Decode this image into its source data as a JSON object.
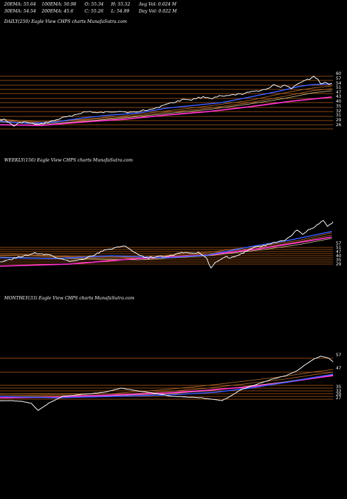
{
  "header": {
    "row1": [
      "20EMA: 55.64",
      "100EMA: 50.98",
      "O: 55.34",
      "H: 55.52",
      "Avg Vol: 0.024  M"
    ],
    "row2": [
      "30EMA: 54.54",
      "200EMA: 45.6",
      "C: 55.26",
      "L: 54.99",
      "Day Vol: 0.022  M"
    ]
  },
  "chart_data": [
    {
      "type": "line",
      "title": "DAILY(250) Eagle   View  CHPS charts MunafaSutra.com",
      "y_ticks": [
        60,
        57,
        54,
        51,
        47,
        43,
        40,
        35,
        32,
        31,
        29,
        26
      ],
      "series_colors": {
        "price": "#ffffff",
        "ema_fast": "#3a5bff",
        "ema_slow": "#ff33cc",
        "bands": "#d2691e"
      }
    },
    {
      "type": "line",
      "title": "WEEKLY(156) Eagle   View  CHPS charts MunafaSutra.com",
      "y_ticks": [
        57,
        51,
        47,
        40,
        35,
        29
      ],
      "series_colors": {
        "price": "#ffffff",
        "ema_fast": "#3a5bff",
        "ema_slow": "#ff33cc",
        "bands": "#d2691e"
      }
    },
    {
      "type": "line",
      "title": "MONTHLY(33) Eagle   View  CHPS charts MunafaSutra.com",
      "y_ticks": [
        57,
        47,
        35,
        33,
        29,
        27
      ],
      "series_colors": {
        "price": "#ffffff",
        "ema_fast": "#3a5bff",
        "ema_slow": "#ff33cc",
        "bands": "#d2691e"
      }
    }
  ]
}
